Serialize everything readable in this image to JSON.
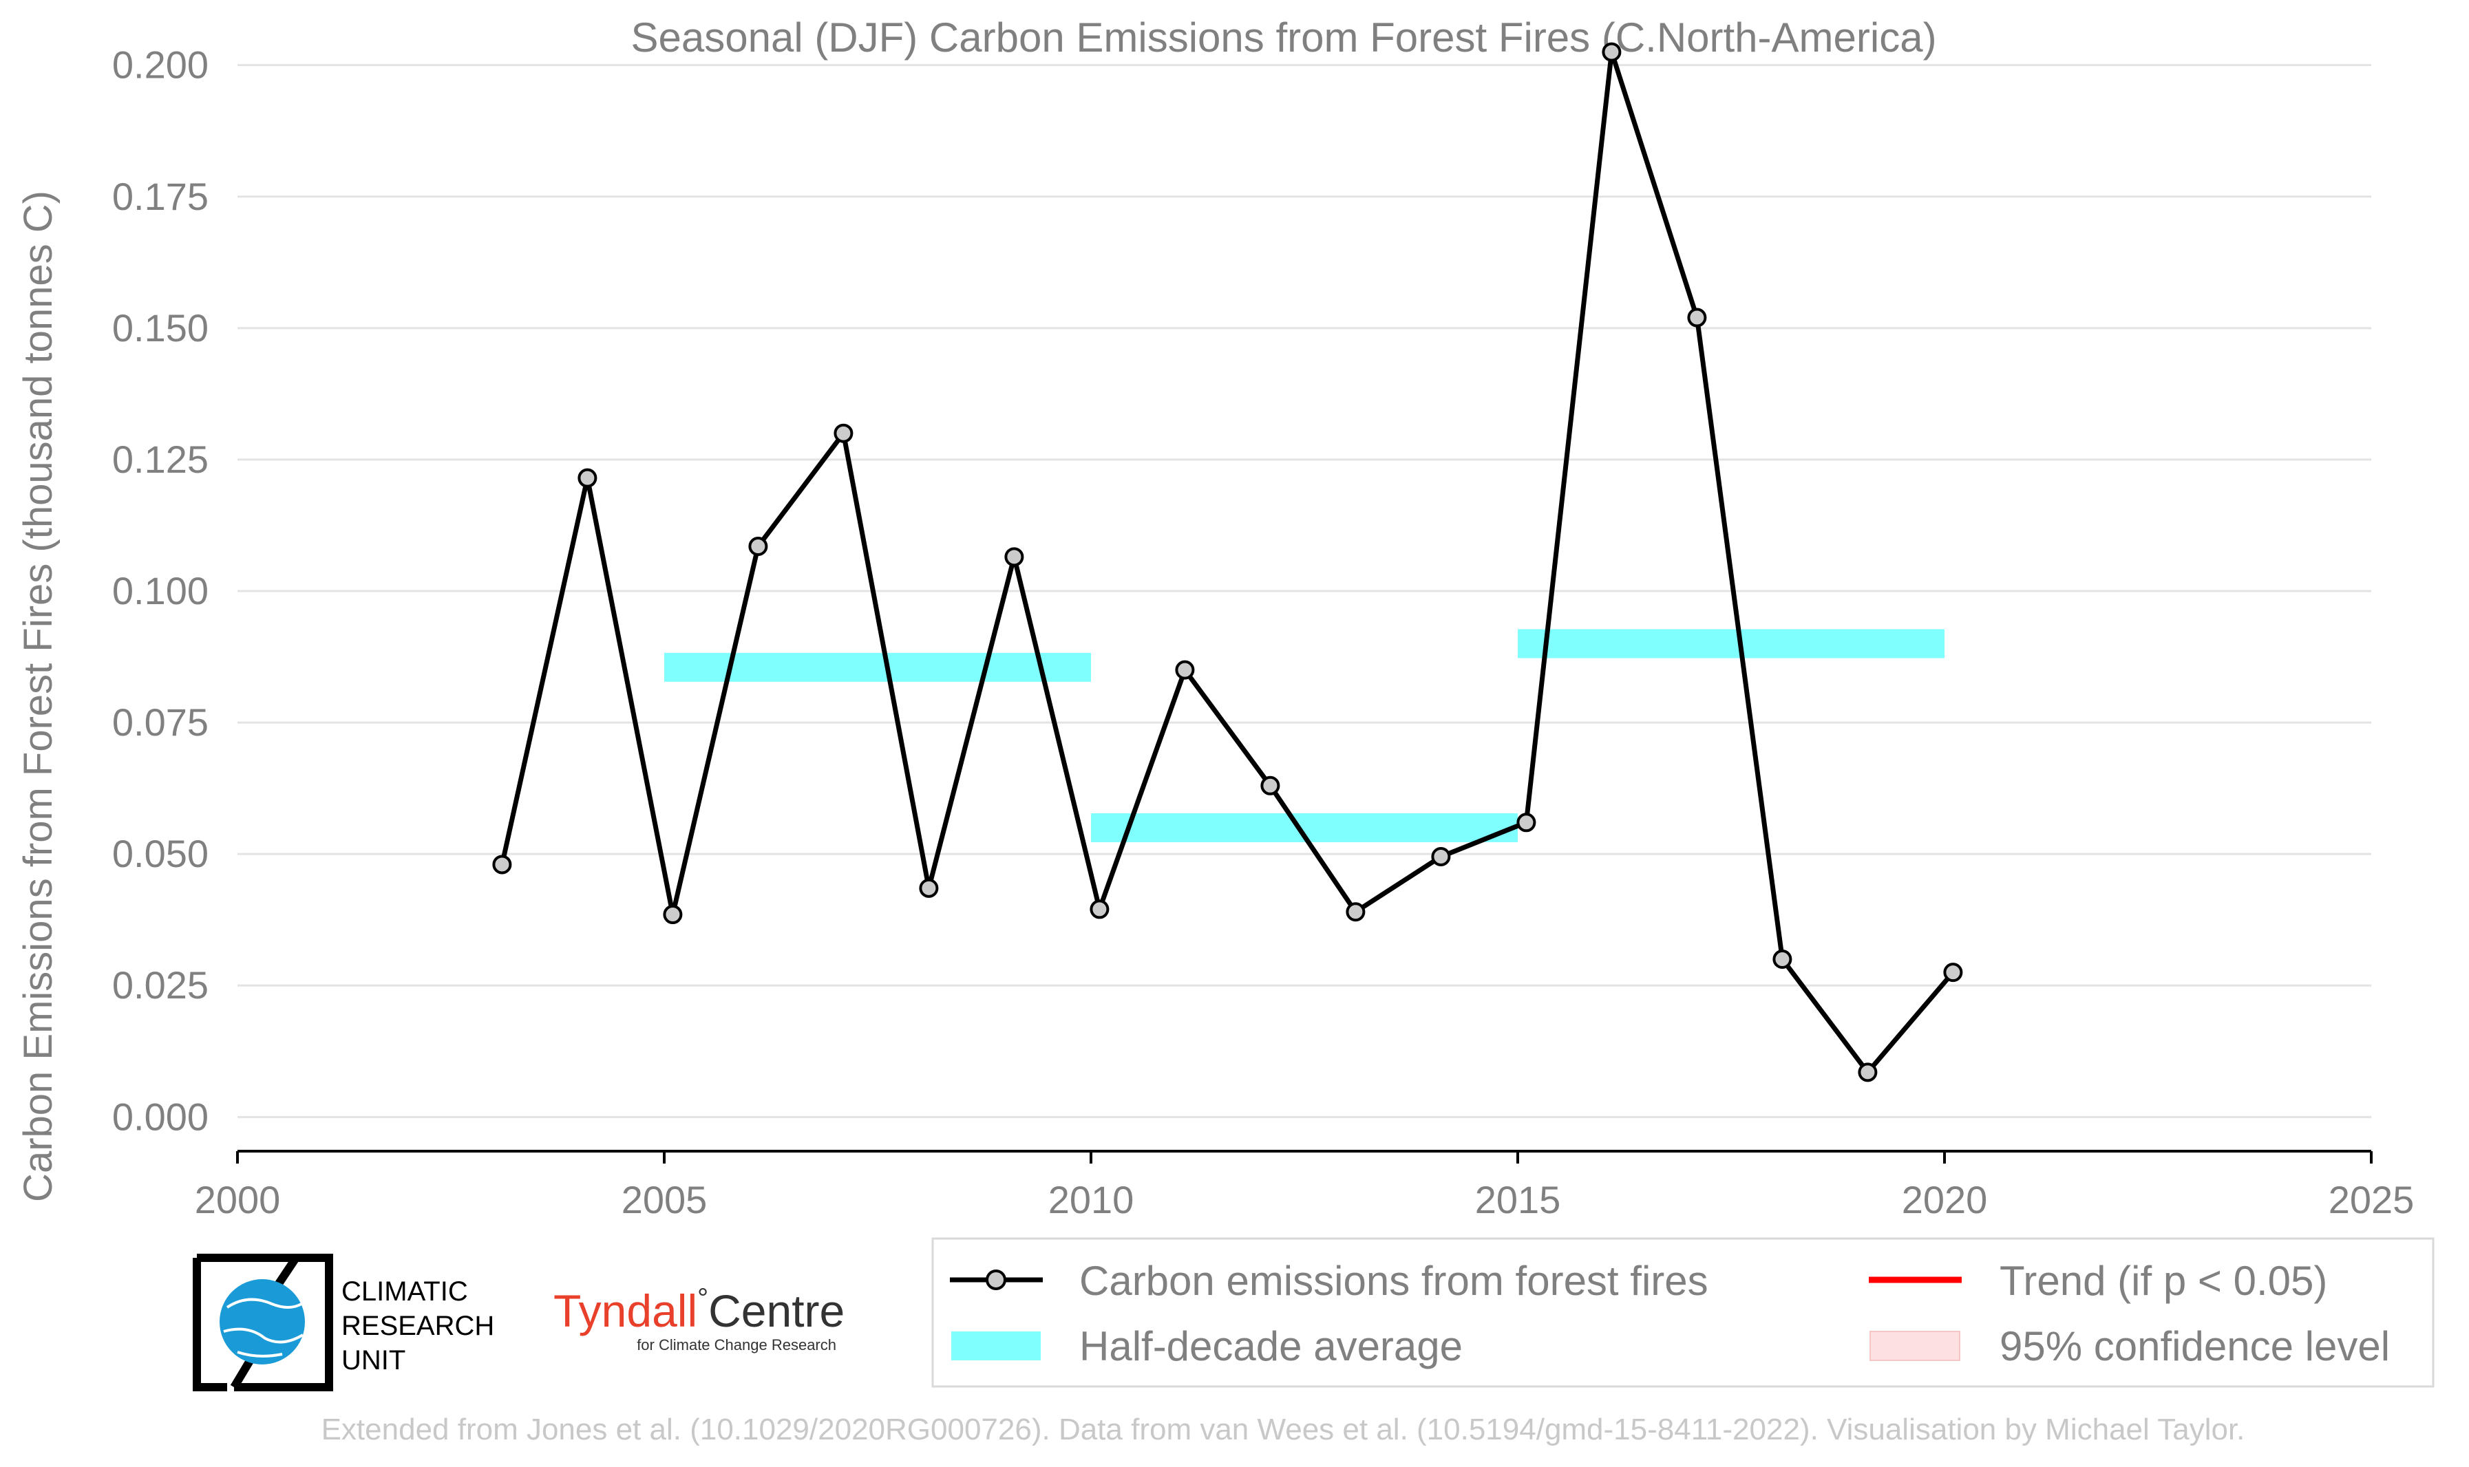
{
  "chart_data": {
    "type": "line",
    "title": "Seasonal (DJF) Carbon Emissions from Forest Fires (C.North-America)",
    "xlabel": "",
    "ylabel": "Carbon Emissions from Forest Fires (thousand tonnes C)",
    "xlim": [
      2000,
      2025
    ],
    "ylim": [
      -0.0065,
      0.2065
    ],
    "x_ticks": [
      "2000",
      "2005",
      "2010",
      "2015",
      "2020",
      "2025"
    ],
    "y_ticks": [
      "0.000",
      "0.025",
      "0.050",
      "0.075",
      "0.100",
      "0.125",
      "0.150",
      "0.175",
      "0.200"
    ],
    "grid": "horizontal",
    "series": [
      {
        "name": "Carbon emissions from forest fires",
        "color": "#000000",
        "marker_fill": "#cccccc",
        "x": [
          2003,
          2004,
          2005,
          2006,
          2007,
          2008,
          2009,
          2010,
          2011,
          2012,
          2013,
          2014,
          2015,
          2016,
          2017,
          2018,
          2019,
          2020
        ],
        "y": [
          0.048,
          0.1215,
          0.0385,
          0.1085,
          0.13,
          0.0435,
          0.1065,
          0.0395,
          0.085,
          0.063,
          0.039,
          0.0495,
          0.056,
          0.2025,
          0.152,
          0.03,
          0.0085,
          0.0275
        ]
      }
    ],
    "half_decade_average": {
      "name": "Half-decade average",
      "color": "#80ffff",
      "segments": [
        {
          "x_start": 2005,
          "x_end": 2010,
          "value": 0.0855
        },
        {
          "x_start": 2010,
          "x_end": 2015,
          "value": 0.055
        },
        {
          "x_start": 2015,
          "x_end": 2020,
          "value": 0.09
        }
      ]
    },
    "legend": {
      "position": "bottom-right",
      "entries": [
        {
          "label": "Carbon emissions from forest fires",
          "kind": "line-marker",
          "color": "#000000"
        },
        {
          "label": "Trend (if p < 0.05)",
          "kind": "line",
          "color": "#ff0000"
        },
        {
          "label": "Half-decade average",
          "kind": "patch",
          "color": "#80ffff"
        },
        {
          "label": "95% confidence level",
          "kind": "patch",
          "color": "#fde0e0"
        }
      ]
    }
  },
  "logos": {
    "cru": {
      "line1": "CLIMATIC",
      "line2": "RESEARCH",
      "line3": "UNIT"
    },
    "tyndall": {
      "main_a": "Tyndall",
      "main_b": "Centre",
      "degree": "°",
      "sub": "for Climate Change Research"
    }
  },
  "credit": "Extended from Jones et al. (10.1029/2020RG000726). Data from van Wees et al. (10.5194/gmd-15-8411-2022). Visualisation by Michael Taylor."
}
